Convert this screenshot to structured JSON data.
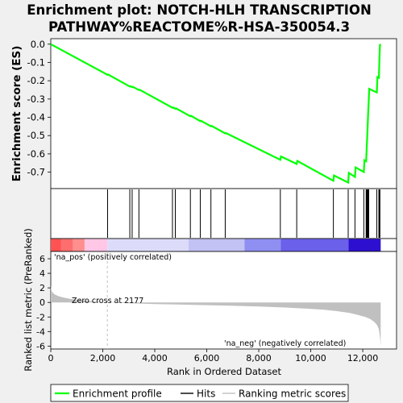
{
  "title_line1": "Enrichment plot: NOTCH-HLH TRANSCRIPTION",
  "title_line2": "PATHWAY%REACTOME%R-HSA-350054.3",
  "colors": {
    "es_line": "#00ff00",
    "hits": "#000000",
    "metric_fill": "#c0c0c0",
    "pos_label": "#ff0000",
    "neg_label": "#0000ff",
    "zero_cross_line": "#c0c0c0"
  },
  "chart_data": [
    {
      "type": "line",
      "name": "enrichment-score",
      "ylabel": "Enrichment score (ES)",
      "xlim": [
        0,
        13300
      ],
      "ylim": [
        -0.79,
        0.03
      ],
      "yticks": [
        0.0,
        -0.1,
        -0.2,
        -0.3,
        -0.4,
        -0.5,
        -0.6,
        -0.7
      ],
      "ytick_labels": [
        "0.0",
        "-0.1",
        "-0.2",
        "-0.3",
        "-0.4",
        "-0.5",
        "-0.6",
        "-0.7"
      ],
      "x": [
        0,
        2185,
        2210,
        3040,
        3065,
        3130,
        3155,
        3390,
        3415,
        4680,
        4705,
        4790,
        4815,
        5370,
        5395,
        5750,
        5775,
        6160,
        6185,
        6710,
        6735,
        8830,
        8855,
        9460,
        9485,
        10870,
        10895,
        11440,
        11465,
        11700,
        11725,
        12040,
        12065,
        12130,
        12150,
        12170,
        12190,
        12210,
        12230,
        12250,
        12540,
        12565,
        12620,
        12640,
        12660,
        12690
      ],
      "y": [
        0.0,
        -0.168,
        -0.166,
        -0.232,
        -0.23,
        -0.235,
        -0.233,
        -0.251,
        -0.249,
        -0.348,
        -0.346,
        -0.353,
        -0.351,
        -0.394,
        -0.392,
        -0.421,
        -0.419,
        -0.449,
        -0.447,
        -0.488,
        -0.486,
        -0.632,
        -0.614,
        -0.655,
        -0.639,
        -0.747,
        -0.718,
        -0.757,
        -0.704,
        -0.726,
        -0.674,
        -0.699,
        -0.635,
        -0.64,
        -0.575,
        -0.508,
        -0.442,
        -0.375,
        -0.31,
        -0.244,
        -0.264,
        -0.18,
        -0.184,
        -0.09,
        -0.004,
        0.0
      ]
    },
    {
      "type": "scatter",
      "name": "hits",
      "xlim": [
        0,
        13300
      ],
      "x": [
        2185,
        3040,
        3130,
        3390,
        4680,
        4790,
        5370,
        5750,
        6160,
        6710,
        8830,
        9460,
        10870,
        11440,
        11700,
        12040,
        12130,
        12150,
        12170,
        12190,
        12210,
        12230,
        12540,
        12620,
        12640,
        12660
      ]
    },
    {
      "type": "area",
      "name": "ranked-list-metric",
      "xlabel": "Rank in Ordered Dataset",
      "ylabel": "Ranked list metric (PreRanked)",
      "xlim": [
        0,
        13300
      ],
      "ylim": [
        -6.4,
        7.0
      ],
      "xticks": [
        0,
        2000,
        4000,
        6000,
        8000,
        10000,
        12000
      ],
      "xtick_labels": [
        "0",
        "2,000",
        "4,000",
        "6,000",
        "8,000",
        "10,000",
        "12,000"
      ],
      "yticks": [
        6,
        4,
        2,
        0,
        -2,
        -4,
        -6
      ],
      "ytick_labels": [
        "6",
        "4",
        "2",
        "0",
        "-2",
        "-4",
        "-6"
      ],
      "x": [
        0,
        20,
        60,
        150,
        300,
        500,
        800,
        1200,
        1700,
        2177,
        3000,
        4000,
        5000,
        6000,
        7000,
        8000,
        9000,
        10000,
        10500,
        11000,
        11500,
        11800,
        12100,
        12300,
        12450,
        12550,
        12620,
        12670,
        12690
      ],
      "y": [
        2.3,
        1.8,
        1.4,
        1.1,
        0.85,
        0.65,
        0.45,
        0.28,
        0.14,
        0.0,
        -0.12,
        -0.22,
        -0.3,
        -0.38,
        -0.46,
        -0.56,
        -0.7,
        -0.88,
        -1.0,
        -1.2,
        -1.45,
        -1.7,
        -2.0,
        -2.3,
        -2.7,
        -3.1,
        -3.7,
        -5.0,
        -6.0
      ],
      "zero_cross_label": "Zero cross at 2177",
      "zero_cross": 2177,
      "pos_label": "'na_pos' (positively correlated)",
      "neg_label": "'na_neg' (negatively correlated)"
    }
  ],
  "heatbar": {
    "segments": [
      {
        "x0": 0,
        "x1": 400,
        "color": "#ff5252"
      },
      {
        "x0": 400,
        "x1": 850,
        "color": "#ff6e6e"
      },
      {
        "x0": 850,
        "x1": 1300,
        "color": "#ff8f8f"
      },
      {
        "x0": 1300,
        "x1": 2177,
        "color": "#ffc6e6"
      },
      {
        "x0": 2177,
        "x1": 5300,
        "color": "#dcdcfa"
      },
      {
        "x0": 5300,
        "x1": 7450,
        "color": "#c2c2f5"
      },
      {
        "x0": 7450,
        "x1": 8850,
        "color": "#8f8ff2"
      },
      {
        "x0": 8850,
        "x1": 11450,
        "color": "#6b60ea"
      },
      {
        "x0": 11450,
        "x1": 12690,
        "color": "#2d10cf"
      }
    ]
  },
  "legend": {
    "items": [
      {
        "label": "Enrichment profile",
        "color": "#00ff00"
      },
      {
        "label": "Hits",
        "color": "#000000"
      },
      {
        "label": "Ranking metric scores",
        "color": "#c0c0c0"
      }
    ]
  }
}
